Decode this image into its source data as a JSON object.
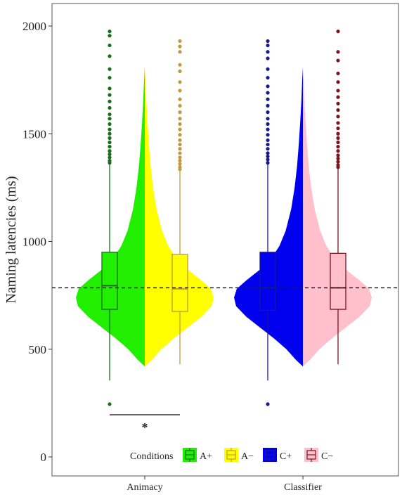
{
  "chart_data": {
    "type": "violin-boxplot",
    "title": "",
    "xlabel": "",
    "ylabel": "Naming latencies (ms)",
    "ylim": [
      0,
      2000
    ],
    "yticks": [
      "0",
      "500",
      "1000",
      "1500",
      "2000"
    ],
    "grid": false,
    "legend_position": "bottom",
    "legend_title": "Conditions",
    "reference_line": {
      "value": 785,
      "style": "dashed"
    },
    "categories": [
      "Animacy",
      "Classifier"
    ],
    "series": [
      {
        "name": "A+",
        "category": "Animacy",
        "side": "left",
        "fill": "#22ee00",
        "line": "#1a6e1a",
        "box": {
          "whisker_low": 355,
          "q1": 685,
          "median": 795,
          "q3": 950,
          "whisker_high": 1360
        },
        "outliers": [
          245,
          1365,
          1375,
          1390,
          1405,
          1420,
          1440,
          1460,
          1480,
          1500,
          1520,
          1545,
          1570,
          1590,
          1620,
          1650,
          1680,
          1710,
          1760,
          1800,
          1860,
          1910,
          1955,
          1975
        ]
      },
      {
        "name": "A−",
        "category": "Animacy",
        "side": "right",
        "fill": "#ffff00",
        "line": "#c49a3e",
        "box": {
          "whisker_low": 430,
          "q1": 675,
          "median": 780,
          "q3": 940,
          "whisker_high": 1330
        },
        "outliers": [
          1335,
          1345,
          1360,
          1375,
          1390,
          1410,
          1430,
          1450,
          1470,
          1495,
          1520,
          1545,
          1570,
          1600,
          1630,
          1660,
          1700,
          1740,
          1790,
          1820,
          1880,
          1905,
          1930
        ]
      },
      {
        "name": "C+",
        "category": "Classifier",
        "side": "left",
        "fill": "#0000ee",
        "line": "#1a1a8e",
        "box": {
          "whisker_low": 355,
          "q1": 680,
          "median": 785,
          "q3": 950,
          "whisker_high": 1360
        },
        "outliers": [
          245,
          1365,
          1380,
          1395,
          1410,
          1430,
          1450,
          1470,
          1495,
          1520,
          1545,
          1570,
          1600,
          1630,
          1660,
          1690,
          1720,
          1760,
          1800,
          1850,
          1880,
          1910,
          1930
        ]
      },
      {
        "name": "C−",
        "category": "Classifier",
        "side": "right",
        "fill": "#ffc0cb",
        "line": "#7a1520",
        "box": {
          "whisker_low": 430,
          "q1": 685,
          "median": 785,
          "q3": 945,
          "whisker_high": 1340
        },
        "outliers": [
          1345,
          1355,
          1370,
          1385,
          1400,
          1420,
          1440,
          1460,
          1480,
          1500,
          1525,
          1550,
          1580,
          1610,
          1640,
          1670,
          1700,
          1740,
          1780,
          1840,
          1880,
          1975
        ]
      }
    ],
    "violin_profile": [
      [
        420,
        0.0
      ],
      [
        450,
        0.1
      ],
      [
        500,
        0.24
      ],
      [
        550,
        0.42
      ],
      [
        600,
        0.62
      ],
      [
        650,
        0.82
      ],
      [
        700,
        0.97
      ],
      [
        740,
        1.0
      ],
      [
        780,
        0.96
      ],
      [
        820,
        0.82
      ],
      [
        870,
        0.62
      ],
      [
        920,
        0.46
      ],
      [
        980,
        0.34
      ],
      [
        1050,
        0.25
      ],
      [
        1150,
        0.17
      ],
      [
        1250,
        0.12
      ],
      [
        1350,
        0.085
      ],
      [
        1450,
        0.06
      ],
      [
        1550,
        0.04
      ],
      [
        1650,
        0.022
      ],
      [
        1750,
        0.01
      ],
      [
        1810,
        0.0
      ]
    ],
    "annotations": [
      {
        "type": "significance",
        "label": "*",
        "between": [
          "A+",
          "A−"
        ]
      }
    ]
  }
}
